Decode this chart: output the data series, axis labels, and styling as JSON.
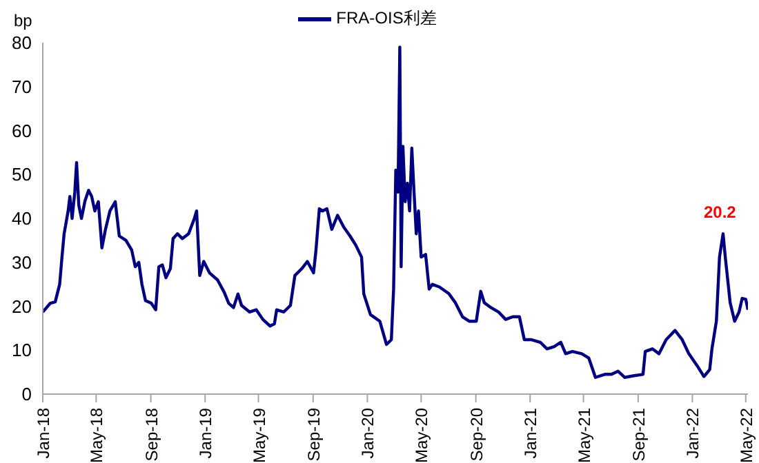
{
  "chart_data": {
    "type": "line",
    "ylabel": "bp",
    "legend": "top",
    "grid": false,
    "marker": "none",
    "line_style": "solid",
    "annotations": [
      "20.2"
    ],
    "xlim": [
      "2018-01-01",
      "2022-05-06"
    ],
    "xticks": [
      {
        "value": "2018-01-01",
        "label": "Jan-18"
      },
      {
        "value": "2018-05-01",
        "label": "May-18"
      },
      {
        "value": "2018-09-01",
        "label": "Sep-18"
      },
      {
        "value": "2019-01-01",
        "label": "Jan-19"
      },
      {
        "value": "2019-05-01",
        "label": "May-19"
      },
      {
        "value": "2019-09-01",
        "label": "Sep-19"
      },
      {
        "value": "2020-01-01",
        "label": "Jan-20"
      },
      {
        "value": "2020-05-01",
        "label": "May-20"
      },
      {
        "value": "2020-09-01",
        "label": "Sep-20"
      },
      {
        "value": "2021-01-01",
        "label": "Jan-21"
      },
      {
        "value": "2021-05-01",
        "label": "May-21"
      },
      {
        "value": "2021-09-01",
        "label": "Sep-21"
      },
      {
        "value": "2022-01-01",
        "label": "Jan-22"
      },
      {
        "value": "2022-05-01",
        "label": "May-22"
      }
    ],
    "ylim": [
      0,
      80
    ],
    "yticks": [
      0,
      10,
      20,
      30,
      40,
      50,
      60,
      70,
      80
    ],
    "x": [
      "2018-01-01",
      "2018-01-18",
      "2018-01-29",
      "2018-02-08",
      "2018-02-13",
      "2018-02-18",
      "2018-02-27",
      "2018-03-03",
      "2018-03-08",
      "2018-03-14",
      "2018-03-18",
      "2018-03-23",
      "2018-03-29",
      "2018-04-06",
      "2018-04-14",
      "2018-04-21",
      "2018-04-28",
      "2018-05-06",
      "2018-05-14",
      "2018-05-22",
      "2018-06-01",
      "2018-06-13",
      "2018-06-22",
      "2018-07-07",
      "2018-07-20",
      "2018-07-28",
      "2018-08-05",
      "2018-08-12",
      "2018-08-20",
      "2018-09-02",
      "2018-09-12",
      "2018-09-19",
      "2018-09-27",
      "2018-10-05",
      "2018-10-15",
      "2018-10-21",
      "2018-10-31",
      "2018-11-11",
      "2018-11-25",
      "2018-12-08",
      "2018-12-13",
      "2018-12-20",
      "2018-12-29",
      "2019-01-11",
      "2019-01-29",
      "2019-02-13",
      "2019-02-23",
      "2019-03-06",
      "2019-03-16",
      "2019-03-24",
      "2019-04-11",
      "2019-04-26",
      "2019-05-11",
      "2019-05-27",
      "2019-06-06",
      "2019-06-11",
      "2019-06-27",
      "2019-07-12",
      "2019-07-22",
      "2019-08-07",
      "2019-08-19",
      "2019-09-02",
      "2019-09-07",
      "2019-09-15",
      "2019-09-22",
      "2019-10-02",
      "2019-10-13",
      "2019-10-26",
      "2019-11-09",
      "2019-11-23",
      "2019-12-06",
      "2019-12-19",
      "2019-12-24",
      "2020-01-08",
      "2020-01-29",
      "2020-02-13",
      "2020-02-24",
      "2020-02-29",
      "2020-03-05",
      "2020-03-10",
      "2020-03-14",
      "2020-03-17",
      "2020-03-21",
      "2020-03-26",
      "2020-03-31",
      "2020-04-05",
      "2020-04-10",
      "2020-04-15",
      "2020-04-20",
      "2020-04-25",
      "2020-05-01",
      "2020-05-11",
      "2020-05-19",
      "2020-05-26",
      "2020-06-11",
      "2020-07-02",
      "2020-07-17",
      "2020-08-02",
      "2020-08-17",
      "2020-09-02",
      "2020-09-12",
      "2020-09-20",
      "2020-10-05",
      "2020-10-22",
      "2020-11-07",
      "2020-11-23",
      "2020-12-08",
      "2020-12-19",
      "2021-01-03",
      "2021-01-24",
      "2021-02-08",
      "2021-02-24",
      "2021-03-11",
      "2021-03-22",
      "2021-04-06",
      "2021-04-27",
      "2021-05-13",
      "2021-05-28",
      "2021-06-18",
      "2021-07-03",
      "2021-07-18",
      "2021-08-02",
      "2021-08-23",
      "2021-09-12",
      "2021-09-17",
      "2021-10-03",
      "2021-10-18",
      "2021-11-03",
      "2021-11-23",
      "2021-12-09",
      "2021-12-24",
      "2022-01-14",
      "2022-01-27",
      "2022-02-09",
      "2022-02-14",
      "2022-02-24",
      "2022-03-03",
      "2022-03-11",
      "2022-03-16",
      "2022-03-27",
      "2022-04-06",
      "2022-04-16",
      "2022-04-23",
      "2022-05-01",
      "2022-05-06"
    ],
    "series": [
      {
        "name": "FRA-OIS利差",
        "color": "#000080",
        "values": [
          18.7,
          20.7,
          21,
          25,
          31,
          36.5,
          41.7,
          45,
          40,
          46,
          52.7,
          43,
          40,
          44,
          46.4,
          45,
          41.7,
          43.8,
          33.3,
          37.5,
          41.7,
          43.8,
          36,
          35,
          32.8,
          29,
          30,
          25,
          21.3,
          20.7,
          19.2,
          29,
          29.4,
          26.5,
          28.6,
          35.4,
          36.5,
          35.4,
          36.5,
          40,
          41.7,
          27,
          30.2,
          27.6,
          26,
          23.2,
          20.7,
          19.7,
          22.8,
          20.2,
          18.7,
          19.2,
          17,
          15.5,
          16,
          19.2,
          18.7,
          20.2,
          27,
          28.6,
          30.2,
          27.6,
          32.3,
          42.2,
          41.7,
          42.2,
          37.5,
          40.7,
          38,
          36,
          33.9,
          31.2,
          22.8,
          18.1,
          16.6,
          11.3,
          12.4,
          23.9,
          51,
          46,
          79,
          29,
          56.4,
          43.8,
          48,
          41.7,
          56,
          46,
          36.5,
          41.7,
          31.2,
          31.8,
          23.9,
          25,
          24.4,
          22.9,
          20.8,
          17.6,
          16.6,
          16.6,
          23.4,
          20.8,
          19.7,
          18.7,
          17,
          17.6,
          17.6,
          12.4,
          12.4,
          11.8,
          10.3,
          10.8,
          11.8,
          9.2,
          9.7,
          9.2,
          8.2,
          3.8,
          4.5,
          4.5,
          5.2,
          3.8,
          4.2,
          4.5,
          9.7,
          10.3,
          9.2,
          12.4,
          14.5,
          12.4,
          9.2,
          6.1,
          4,
          5.6,
          10.3,
          16.6,
          31.2,
          36.5,
          31.2,
          20.8,
          16.6,
          18.7,
          21.8,
          21.6,
          19.2
        ]
      }
    ]
  }
}
